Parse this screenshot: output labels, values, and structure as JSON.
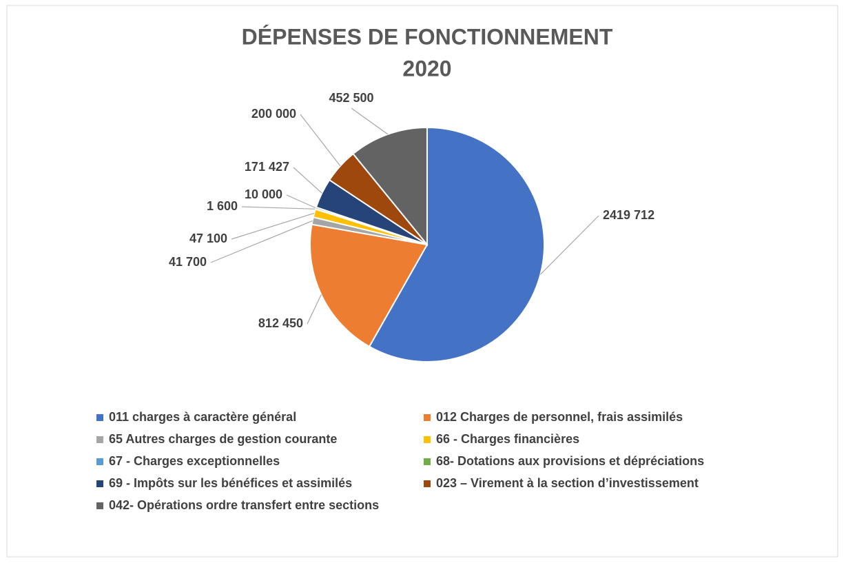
{
  "chart_data": {
    "type": "pie",
    "title": "DÉPENSES DE FONCTIONNEMENT",
    "subtitle": "2020",
    "categories": [
      "011 charges à caractère général",
      "012 Charges de personnel, frais assimilés",
      "65 Autres charges de gestion courante",
      "66 - Charges financières",
      "67 - Charges exceptionnelles",
      "68- Dotations aux provisions et dépréciations",
      "69 - Impôts sur les bénéfices et assimilés",
      "023 – Virement à la section d’investissement",
      "042- Opérations ordre transfert entre sections"
    ],
    "values": [
      2419712,
      812450,
      41700,
      47100,
      1600,
      10000,
      171427,
      200000,
      452500
    ],
    "value_labels": [
      "2419 712",
      "812 450",
      "41 700",
      "47 100",
      "1 600",
      "10 000",
      "171 427",
      "200 000",
      "452 500"
    ],
    "colors": [
      "#4472c4",
      "#ed7d31",
      "#a5a5a5",
      "#ffc000",
      "#5b9bd5",
      "#70ad47",
      "#264478",
      "#9e480e",
      "#636363"
    ],
    "legend": "bottom"
  }
}
